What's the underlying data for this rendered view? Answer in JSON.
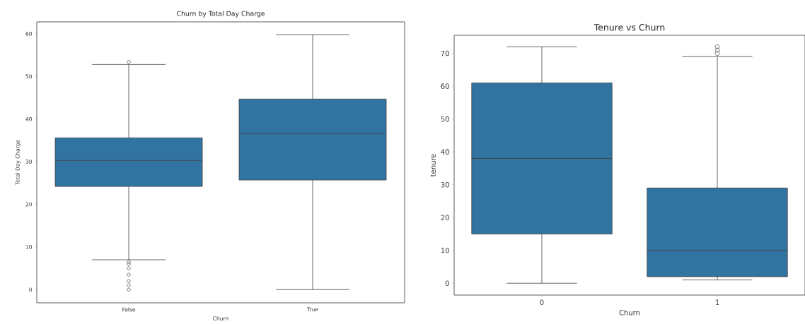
{
  "chart_data": [
    {
      "type": "box",
      "title": "Churn by Total Day Charge",
      "xlabel": "Churn",
      "ylabel": "Total Day Charge",
      "categories": [
        "False",
        "True"
      ],
      "color": "#3274a1",
      "ylim": [
        -3.1,
        62.8
      ],
      "yticks": [
        0,
        10,
        20,
        30,
        40,
        50,
        60
      ],
      "boxes": [
        {
          "low": 7.0,
          "q1": 24.2,
          "median": 30.3,
          "q3": 35.6,
          "high": 52.8,
          "outliers": [
            53.4,
            6.5,
            6,
            5,
            3.5,
            2,
            1,
            0
          ]
        },
        {
          "low": 0,
          "q1": 25.7,
          "median": 36.6,
          "q3": 44.7,
          "high": 59.8
        }
      ]
    },
    {
      "type": "box",
      "title": "Tenure vs Churn",
      "xlabel": "Churn",
      "ylabel": "tenure",
      "categories": [
        "0",
        "1"
      ],
      "color": "#3274a1",
      "ylim": [
        -3.6,
        75.5
      ],
      "yticks": [
        0,
        10,
        20,
        30,
        40,
        50,
        60,
        70
      ],
      "boxes": [
        {
          "low": 0,
          "q1": 15,
          "median": 38,
          "q3": 61,
          "high": 72
        },
        {
          "low": 1,
          "q1": 2,
          "median": 10,
          "q3": 29,
          "high": 69,
          "outliers": [
            70,
            71,
            72
          ]
        }
      ]
    }
  ]
}
